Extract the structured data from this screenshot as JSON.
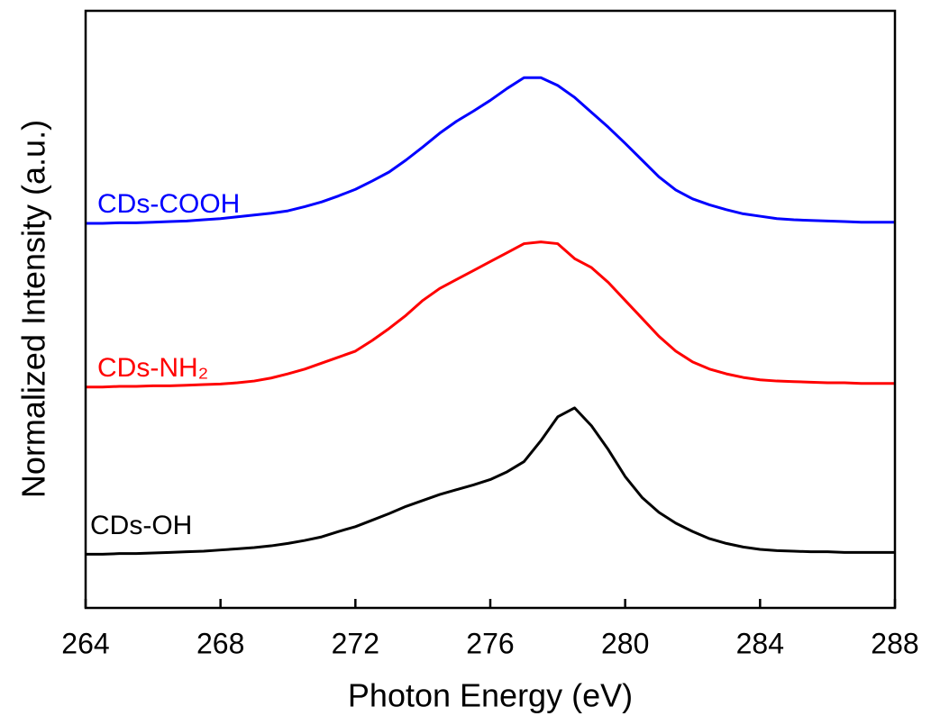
{
  "chart_data": {
    "type": "line",
    "xlabel": "Photon Energy (eV)",
    "ylabel": "Normalized Intensity (a.u.)",
    "xlim": [
      264,
      288
    ],
    "xticks": [
      264,
      268,
      272,
      276,
      280,
      284,
      288
    ],
    "ylim": [
      0,
      10
    ],
    "x": [
      264,
      264.5,
      265,
      265.5,
      266,
      266.5,
      267,
      267.5,
      268,
      268.5,
      269,
      269.5,
      270,
      270.5,
      271,
      271.5,
      272,
      272.5,
      273,
      273.5,
      274,
      274.5,
      275,
      275.5,
      276,
      276.5,
      277,
      277.5,
      278,
      278.5,
      279,
      279.5,
      280,
      280.5,
      281,
      281.5,
      282,
      282.5,
      283,
      283.5,
      284,
      284.5,
      285,
      285.5,
      286,
      286.5,
      287,
      287.5,
      288
    ],
    "series": [
      {
        "name": "CDs-COOH",
        "color": "#0000ff",
        "values": [
          6.44,
          6.44,
          6.45,
          6.45,
          6.46,
          6.47,
          6.48,
          6.5,
          6.52,
          6.55,
          6.58,
          6.61,
          6.65,
          6.72,
          6.8,
          6.9,
          7.01,
          7.15,
          7.3,
          7.5,
          7.72,
          7.95,
          8.15,
          8.32,
          8.5,
          8.7,
          8.88,
          8.88,
          8.75,
          8.55,
          8.3,
          8.05,
          7.78,
          7.5,
          7.22,
          7.0,
          6.85,
          6.75,
          6.67,
          6.6,
          6.56,
          6.52,
          6.5,
          6.49,
          6.48,
          6.47,
          6.46,
          6.46,
          6.46
        ]
      },
      {
        "name": "CDs-NH₂",
        "color": "#ff0000",
        "values": [
          3.7,
          3.7,
          3.71,
          3.71,
          3.72,
          3.72,
          3.73,
          3.74,
          3.75,
          3.77,
          3.8,
          3.85,
          3.92,
          4.0,
          4.1,
          4.2,
          4.3,
          4.48,
          4.68,
          4.9,
          5.15,
          5.35,
          5.5,
          5.65,
          5.8,
          5.95,
          6.1,
          6.13,
          6.1,
          5.85,
          5.7,
          5.45,
          5.15,
          4.85,
          4.55,
          4.3,
          4.12,
          4.0,
          3.92,
          3.86,
          3.82,
          3.8,
          3.79,
          3.78,
          3.77,
          3.77,
          3.76,
          3.76,
          3.76
        ]
      },
      {
        "name": "CDs-OH",
        "color": "#000000",
        "values": [
          0.9,
          0.9,
          0.91,
          0.91,
          0.92,
          0.93,
          0.94,
          0.95,
          0.97,
          0.99,
          1.01,
          1.04,
          1.08,
          1.13,
          1.19,
          1.28,
          1.36,
          1.47,
          1.58,
          1.7,
          1.8,
          1.9,
          1.98,
          2.06,
          2.15,
          2.28,
          2.45,
          2.8,
          3.2,
          3.35,
          3.05,
          2.65,
          2.2,
          1.85,
          1.6,
          1.42,
          1.28,
          1.16,
          1.08,
          1.02,
          0.98,
          0.96,
          0.95,
          0.94,
          0.94,
          0.93,
          0.93,
          0.93,
          0.93
        ]
      }
    ]
  }
}
